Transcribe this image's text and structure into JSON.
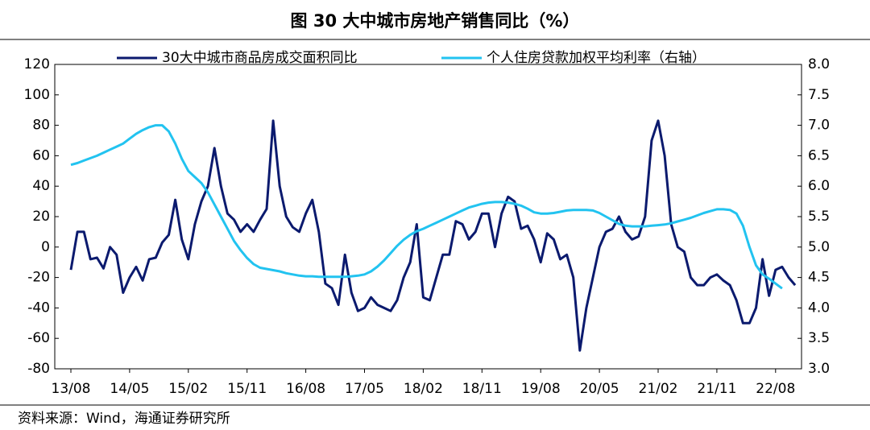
{
  "chart_data": {
    "type": "line",
    "title": "图 30 大中城市房地产销售同比（%）",
    "source": "资料来源：Wind，海通证券研究所",
    "categories": [
      "13/08",
      null,
      null,
      null,
      null,
      null,
      null,
      null,
      null,
      "14/05",
      null,
      null,
      null,
      null,
      null,
      null,
      null,
      null,
      "15/02",
      null,
      null,
      null,
      null,
      null,
      null,
      null,
      null,
      "15/11",
      null,
      null,
      null,
      null,
      null,
      null,
      null,
      null,
      "16/08",
      null,
      null,
      null,
      null,
      null,
      null,
      null,
      null,
      "17/05",
      null,
      null,
      null,
      null,
      null,
      null,
      null,
      null,
      "18/02",
      null,
      null,
      null,
      null,
      null,
      null,
      null,
      null,
      "18/11",
      null,
      null,
      null,
      null,
      null,
      null,
      null,
      null,
      "19/08",
      null,
      null,
      null,
      null,
      null,
      null,
      null,
      null,
      "20/05",
      null,
      null,
      null,
      null,
      null,
      null,
      null,
      null,
      "21/02",
      null,
      null,
      null,
      null,
      null,
      null,
      null,
      null,
      "21/11",
      null,
      null,
      null,
      null,
      null,
      null,
      null,
      null,
      "22/08",
      null,
      null,
      null
    ],
    "series": [
      {
        "name": "30大中城市商品房成交面积同比",
        "color": "#0b1a6e",
        "axis": "y",
        "values": [
          -15,
          10,
          10,
          -8,
          -7,
          -14,
          0,
          -5,
          -30,
          -20,
          -13,
          -22,
          -8,
          -7,
          3,
          8,
          31,
          5,
          -8,
          15,
          30,
          40,
          65,
          40,
          22,
          18,
          10,
          15,
          10,
          18,
          25,
          83,
          40,
          20,
          13,
          10,
          22,
          31,
          10,
          -24,
          -27,
          -38,
          -5,
          -30,
          -42,
          -40,
          -33,
          -38,
          -40,
          -42,
          -35,
          -20,
          -10,
          15,
          -33,
          -35,
          -20,
          -5,
          -5,
          17,
          15,
          5,
          10,
          22,
          22,
          0,
          22,
          33,
          30,
          12,
          14,
          5,
          -10,
          9,
          5,
          -8,
          -5,
          -20,
          -68,
          -40,
          -20,
          0,
          10,
          12,
          20,
          10,
          5,
          7,
          20,
          70,
          83,
          60,
          15,
          0,
          -3,
          -20,
          -25,
          -25,
          -20,
          -18,
          -22,
          -25,
          -35,
          -50,
          -50,
          -40,
          -8,
          -32,
          -15,
          -13,
          -20,
          -25
        ]
      },
      {
        "name": "个人住房贷款加权平均利率（右轴）",
        "color": "#22c3f0",
        "axis": "y2",
        "values": [
          6.35,
          6.38,
          6.42,
          6.46,
          6.5,
          6.55,
          6.6,
          6.65,
          6.7,
          6.78,
          6.86,
          6.92,
          6.97,
          7.0,
          7.0,
          6.9,
          6.7,
          6.45,
          6.25,
          6.15,
          6.05,
          5.9,
          5.7,
          5.5,
          5.3,
          5.1,
          4.95,
          4.82,
          4.72,
          4.66,
          4.64,
          4.62,
          4.6,
          4.57,
          4.55,
          4.53,
          4.52,
          4.52,
          4.51,
          4.51,
          4.51,
          4.51,
          4.51,
          4.52,
          4.53,
          4.55,
          4.6,
          4.68,
          4.78,
          4.9,
          5.02,
          5.12,
          5.2,
          5.26,
          5.3,
          5.35,
          5.4,
          5.45,
          5.5,
          5.55,
          5.6,
          5.65,
          5.68,
          5.71,
          5.73,
          5.74,
          5.74,
          5.73,
          5.71,
          5.68,
          5.63,
          5.57,
          5.55,
          5.55,
          5.56,
          5.58,
          5.6,
          5.61,
          5.61,
          5.61,
          5.6,
          5.56,
          5.5,
          5.44,
          5.38,
          5.35,
          5.34,
          5.34,
          5.34,
          5.35,
          5.36,
          5.37,
          5.39,
          5.42,
          5.45,
          5.48,
          5.52,
          5.56,
          5.59,
          5.62,
          5.62,
          5.61,
          5.55,
          5.35,
          5.0,
          4.7,
          4.55,
          4.48,
          4.4,
          4.32,
          null,
          null
        ]
      }
    ],
    "ylim": [
      -80,
      120
    ],
    "yticks": [
      -80,
      -60,
      -40,
      -20,
      0,
      20,
      40,
      60,
      80,
      100,
      120
    ],
    "y2lim": [
      3,
      8
    ],
    "y2ticks": [
      {
        "value": 3,
        "label": "3.0"
      },
      3.5,
      {
        "value": 4,
        "label": "4.0"
      },
      4.5,
      {
        "value": 5,
        "label": "5.0"
      },
      5.5,
      {
        "value": 6,
        "label": "6.0"
      },
      6.5,
      {
        "value": 7,
        "label": "7.0"
      },
      7.5,
      {
        "value": 8,
        "label": "8.0"
      }
    ],
    "grid": false,
    "legend": "top"
  }
}
